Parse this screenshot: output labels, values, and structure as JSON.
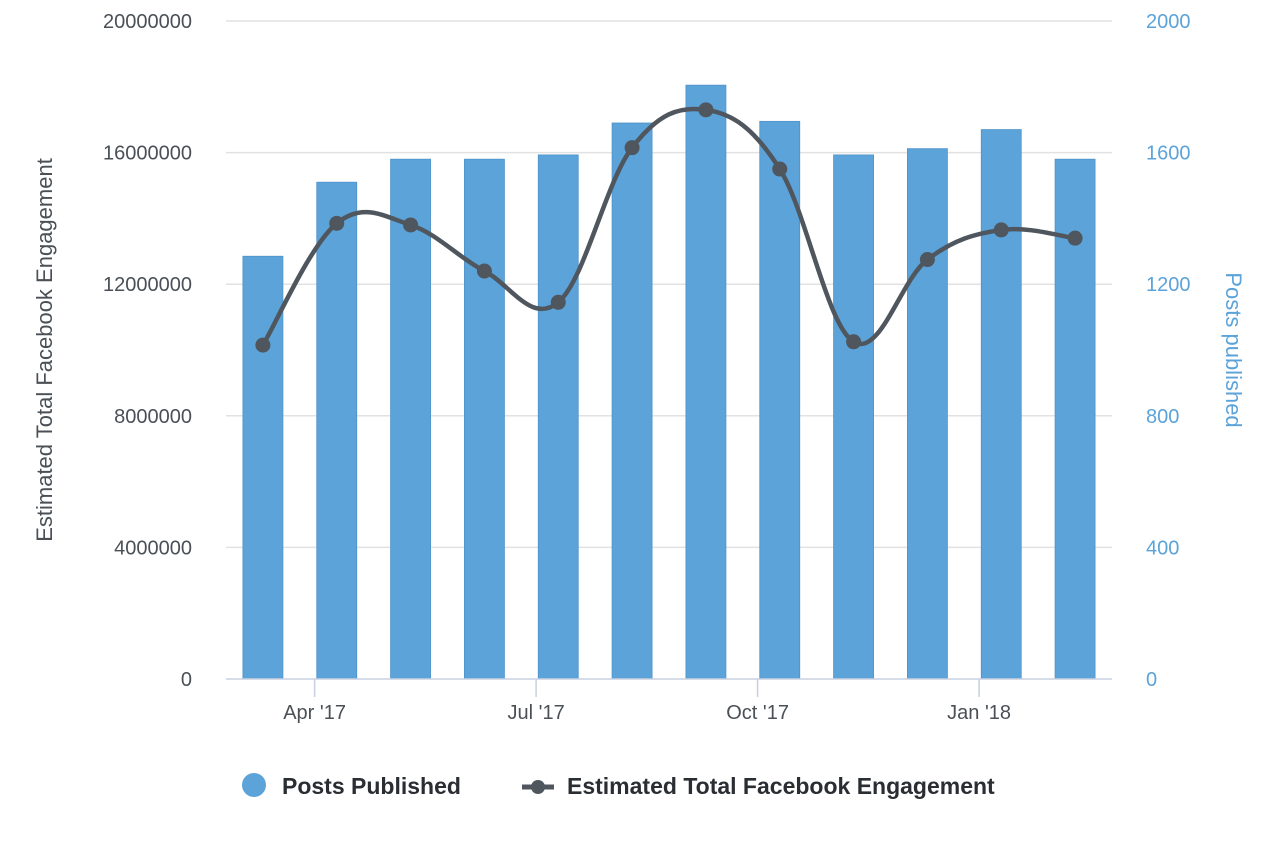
{
  "chart_data": {
    "type": "bar+line",
    "x": [
      "2017-03",
      "2017-04",
      "2017-05",
      "2017-06",
      "2017-07",
      "2017-08",
      "2017-09",
      "2017-10",
      "2017-11",
      "2017-12",
      "2018-01",
      "2018-02"
    ],
    "x_tick_labels": [
      "Apr '17",
      "Jul '17",
      "Oct '17",
      "Jan '18"
    ],
    "x_tick_months": [
      "2017-04",
      "2017-07",
      "2017-10",
      "2018-01"
    ],
    "series": [
      {
        "name": "Posts Published",
        "type": "bar",
        "axis": "right",
        "color": "#5ba3d9",
        "values": [
          1285,
          1510,
          1580,
          1580,
          1593,
          1690,
          1805,
          1695,
          1593,
          1612,
          1670,
          1580
        ]
      },
      {
        "name": "Estimated Total Facebook Engagement",
        "type": "line",
        "axis": "left",
        "color": "#4f565e",
        "values": [
          10150000,
          13850000,
          13800000,
          12400000,
          11450000,
          16150000,
          17300000,
          15500000,
          10250000,
          12750000,
          13650000,
          13400000
        ]
      }
    ],
    "y_left": {
      "label": "Estimated Total Facebook Engagement",
      "range": [
        0,
        20000000
      ],
      "ticks": [
        "0",
        "4000000",
        "8000000",
        "12000000",
        "16000000",
        "20000000"
      ]
    },
    "y_right": {
      "label": "Posts published",
      "range": [
        0,
        2000
      ],
      "ticks": [
        "0",
        "400",
        "800",
        "1200",
        "1600",
        "2000"
      ]
    },
    "grid": true,
    "legend_position": "bottom"
  }
}
